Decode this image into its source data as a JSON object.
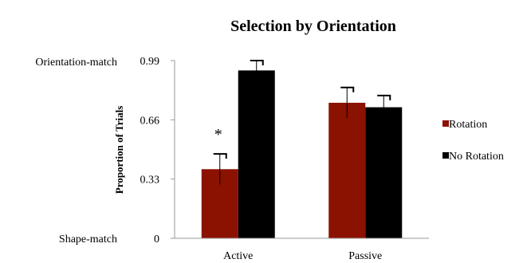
{
  "chart_data": {
    "type": "bar",
    "title": "Selection by Orientation",
    "xlabel": "",
    "ylabel": "Proportion of Trials",
    "categories": [
      "Active",
      "Passive"
    ],
    "ylim": [
      0,
      0.99
    ],
    "yticks": [
      "0",
      "0.33",
      "0.66",
      "0.99"
    ],
    "y_annotations": {
      "top": "Orientation-match",
      "bottom": "Shape-match"
    },
    "series": [
      {
        "name": "Rotation",
        "values": [
          0.385,
          0.755
        ],
        "error": [
          0.085,
          0.085
        ],
        "color": "#8b1200"
      },
      {
        "name": "No Rotation",
        "values": [
          0.935,
          0.73
        ],
        "error": [
          0.055,
          0.065
        ],
        "color": "#000000"
      }
    ],
    "annotations": [
      {
        "text": "*",
        "category": "Active",
        "series": "Rotation"
      }
    ],
    "legend_position": "right",
    "grid": false
  }
}
